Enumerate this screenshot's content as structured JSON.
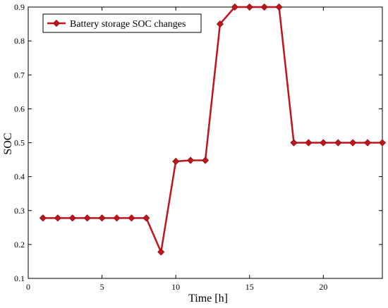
{
  "chart_data": {
    "type": "line",
    "title": "",
    "xlabel": "Time [h]",
    "ylabel": "SOC",
    "xlim": [
      0,
      24
    ],
    "ylim": [
      0.1,
      0.9
    ],
    "x_ticks": [
      0,
      5,
      10,
      15,
      20
    ],
    "y_ticks": [
      0.1,
      0.2,
      0.3,
      0.4,
      0.5,
      0.6,
      0.7,
      0.8,
      0.9
    ],
    "grid": false,
    "legend_position": "top-left",
    "series": [
      {
        "name": "Battery storage SOC changes",
        "color": "#c0141b",
        "marker": "diamond",
        "x": [
          1,
          2,
          3,
          4,
          5,
          6,
          7,
          8,
          9,
          10,
          11,
          12,
          13,
          14,
          15,
          16,
          17,
          18,
          19,
          20,
          21,
          22,
          23,
          24
        ],
        "y": [
          0.278,
          0.278,
          0.278,
          0.278,
          0.278,
          0.278,
          0.278,
          0.278,
          0.178,
          0.445,
          0.448,
          0.448,
          0.85,
          0.9,
          0.9,
          0.9,
          0.9,
          0.5,
          0.5,
          0.5,
          0.5,
          0.5,
          0.5,
          0.5
        ]
      }
    ]
  }
}
